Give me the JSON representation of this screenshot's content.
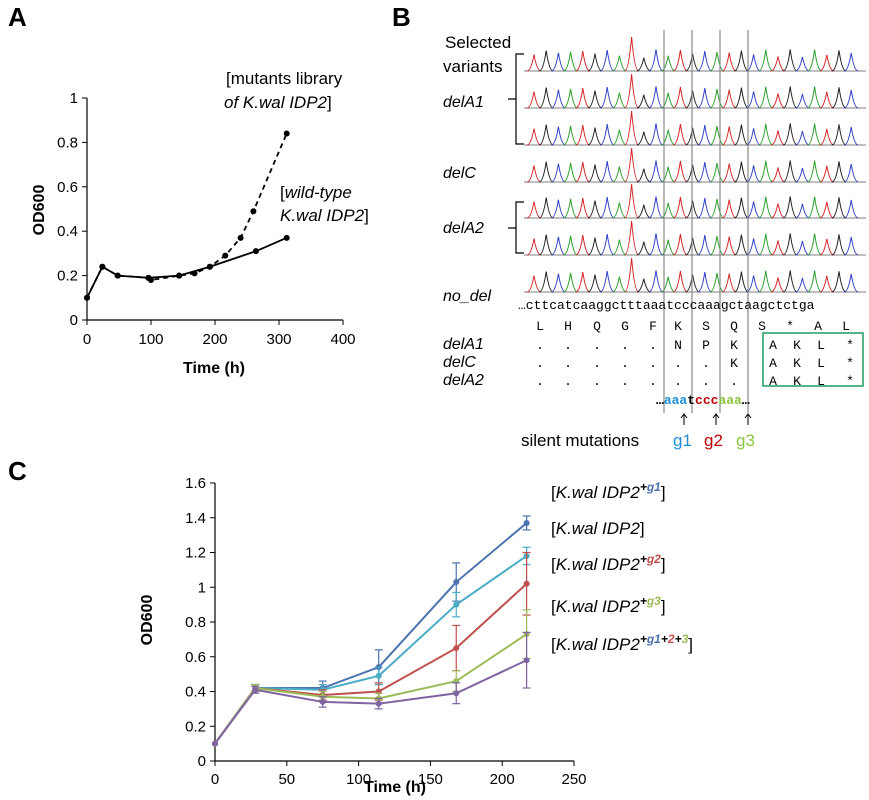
{
  "panels": {
    "a": {
      "label": "A"
    },
    "b": {
      "label": "B"
    },
    "c": {
      "label": "C"
    }
  },
  "chart_data": [
    {
      "panel": "A",
      "type": "line",
      "xlabel": "Time (h)",
      "ylabel": "OD600",
      "xlim": [
        0,
        400
      ],
      "ylim": [
        0,
        1
      ],
      "xticks": [
        "0",
        "100",
        "200",
        "300",
        "400"
      ],
      "yticks": [
        "0",
        "0.2",
        "0.4",
        "0.6",
        "0.8",
        "1"
      ],
      "grid": false,
      "series": [
        {
          "name_parts": [
            "[mutants library",
            "of K.wal IDP2]"
          ],
          "style": "dashed",
          "x": [
            0,
            24,
            48,
            96,
            100,
            144,
            168,
            192,
            216,
            240,
            260,
            312
          ],
          "y": [
            0.1,
            0.24,
            0.2,
            0.19,
            0.18,
            0.2,
            0.21,
            0.24,
            0.29,
            0.37,
            0.49,
            0.84
          ]
        },
        {
          "name_parts": [
            "[wild-type",
            "K.wal IDP2]"
          ],
          "style": "solid",
          "x": [
            0,
            24,
            48,
            96,
            144,
            192,
            264,
            312
          ],
          "y": [
            0.1,
            0.24,
            0.2,
            0.19,
            0.2,
            0.24,
            0.31,
            0.37
          ]
        }
      ]
    },
    {
      "panel": "C",
      "type": "line",
      "xlabel": "Time (h)",
      "ylabel": "OD600",
      "xlim": [
        0,
        250
      ],
      "ylim": [
        0,
        1.6
      ],
      "xticks": [
        "0",
        "50",
        "100",
        "150",
        "200",
        "250"
      ],
      "yticks": [
        "0",
        "0.2",
        "0.4",
        "0.6",
        "0.8",
        "1",
        "1.2",
        "1.4",
        "1.6"
      ],
      "grid": false,
      "x": [
        0,
        28,
        75,
        114,
        168,
        217
      ],
      "series": [
        {
          "label": "[K.wal IDP2+g1]",
          "color": "#4a72b0",
          "y": [
            0.1,
            0.42,
            0.42,
            0.54,
            1.03,
            1.37
          ],
          "err": [
            0,
            0.02,
            0.04,
            0.1,
            0.11,
            0.04
          ]
        },
        {
          "label": "[K.wal IDP2]",
          "color": "#4bacc6",
          "y": [
            0.1,
            0.42,
            0.41,
            0.49,
            0.9,
            1.18
          ],
          "err": [
            0,
            0.02,
            0.03,
            0.05,
            0.07,
            0.05
          ]
        },
        {
          "label": "[K.wal IDP2+g2]",
          "color": "#c0504d",
          "y": [
            0.1,
            0.42,
            0.38,
            0.4,
            0.65,
            1.02
          ],
          "err": [
            0,
            0.02,
            0.03,
            0.05,
            0.13,
            0.18
          ]
        },
        {
          "label": "[K.wal IDP2+g3]",
          "color": "#9bbb59",
          "y": [
            0.1,
            0.42,
            0.37,
            0.36,
            0.46,
            0.73
          ],
          "err": [
            0,
            0.02,
            0.03,
            0.03,
            0.06,
            0.14
          ]
        },
        {
          "label": "[K.wal IDP2+g1+2+3]",
          "color": "#8064a2",
          "y": [
            0.1,
            0.41,
            0.34,
            0.33,
            0.39,
            0.58
          ],
          "err": [
            0,
            0.02,
            0.03,
            0.03,
            0.06,
            0.16
          ]
        }
      ],
      "legend_parts": [
        {
          "pre": "[",
          "it": "K.wal IDP2",
          "sup": [
            {
              "t": "+",
              "c": "#000000"
            },
            {
              "t": "g1",
              "c": "#4a72b0"
            }
          ],
          "post": "]"
        },
        {
          "pre": "[",
          "it": "K.wal IDP2",
          "sup": [],
          "post": "]"
        },
        {
          "pre": "[",
          "it": "K.wal IDP2",
          "sup": [
            {
              "t": "+",
              "c": "#000000"
            },
            {
              "t": "g2",
              "c": "#c0504d"
            }
          ],
          "post": "]"
        },
        {
          "pre": "[",
          "it": "K.wal IDP2",
          "sup": [
            {
              "t": "+",
              "c": "#000000"
            },
            {
              "t": "g3",
              "c": "#9bbb59"
            }
          ],
          "post": "]"
        },
        {
          "pre": "[",
          "it": "K.wal IDP2",
          "sup": [
            {
              "t": "+",
              "c": "#000000"
            },
            {
              "t": "g1",
              "c": "#4a72b0"
            },
            {
              "t": "+",
              "c": "#000000"
            },
            {
              "t": "2",
              "c": "#c0504d"
            },
            {
              "t": "+",
              "c": "#000000"
            },
            {
              "t": "3",
              "c": "#9bbb59"
            }
          ],
          "post": "]"
        }
      ]
    }
  ],
  "panel_b": {
    "selected_variants": [
      "Selected",
      "variants"
    ],
    "variant_labels": [
      "delA1",
      "delC",
      "delA2",
      "no_del"
    ],
    "nucleotide_sequence": "…cttcatcaaggctttaaatcccaaagctaagctctga",
    "aa_reference": [
      "L",
      "H",
      "Q",
      "G",
      "F",
      "K",
      "S",
      "Q",
      "S",
      "*",
      "A",
      "L"
    ],
    "alignment": [
      {
        "name": "delA1",
        "cells": [
          ".",
          ".",
          ".",
          ".",
          ".",
          "N",
          "P",
          "K",
          "A",
          "K",
          "L",
          "*"
        ]
      },
      {
        "name": "delC",
        "cells": [
          ".",
          ".",
          ".",
          ".",
          ".",
          ".",
          ".",
          "K",
          "A",
          "K",
          "L",
          "*"
        ]
      },
      {
        "name": "delA2",
        "cells": [
          ".",
          ".",
          ".",
          ".",
          ".",
          ".",
          ".",
          ".",
          "A",
          "K",
          "L",
          "*"
        ]
      }
    ],
    "mutated_codons": [
      {
        "pre": "…",
        "text": "aaa",
        "color": "#1f8dd6"
      },
      {
        "pre": "",
        "text": "t",
        "color": "#000000"
      },
      {
        "pre": "",
        "text": "ccc",
        "color": "#c00000"
      },
      {
        "pre": "",
        "text": "aaa",
        "color": "#8cc63f"
      },
      {
        "pre": "",
        "text": "…",
        "color": "#000000"
      }
    ],
    "silent_mutations_label": "silent mutations",
    "groups": [
      {
        "name": "g1",
        "color": "#1f8dd6"
      },
      {
        "name": "g2",
        "color": "#c00000"
      },
      {
        "name": "g3",
        "color": "#8cc63f"
      }
    ],
    "box_color": "#2aa36b",
    "trace_colors": {
      "A": "#2ca02c",
      "C": "#3040c8",
      "G": "#222222",
      "T": "#d62728"
    }
  }
}
